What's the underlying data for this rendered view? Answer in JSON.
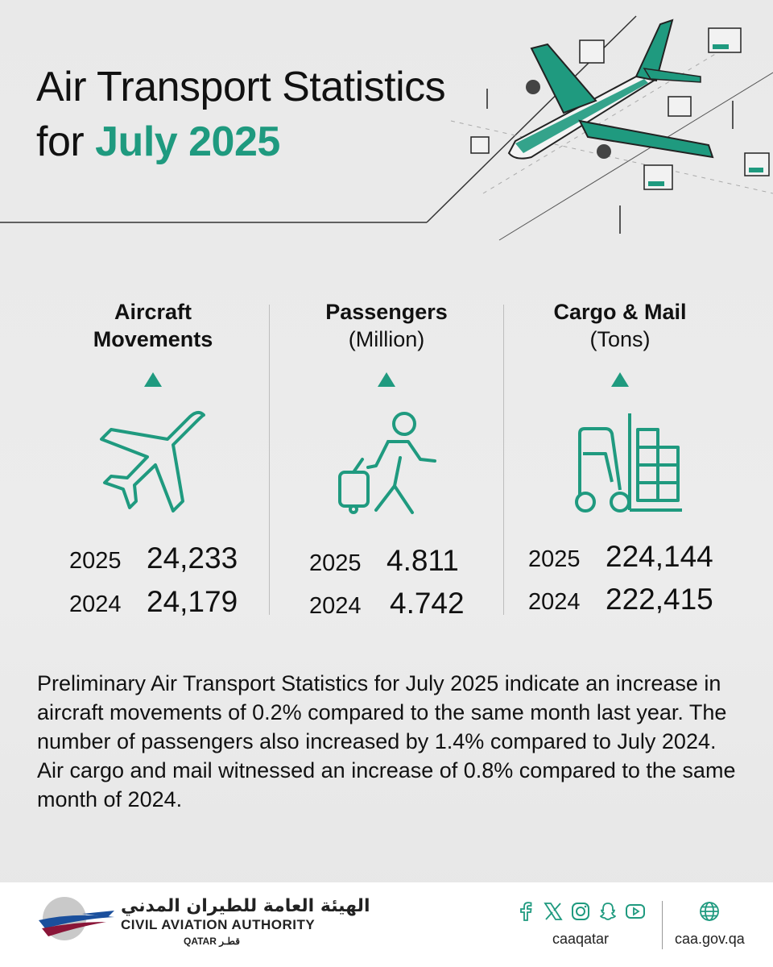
{
  "header": {
    "title_line1": "Air Transport Statistics",
    "title_for": "for ",
    "title_accent": "July 2025"
  },
  "stats": [
    {
      "heading": "Aircraft",
      "heading2": "Movements",
      "sub": "",
      "icon": "airplane-icon",
      "trend": "up",
      "rows": [
        {
          "year": "2025",
          "value": "24,233"
        },
        {
          "year": "2024",
          "value": "24,179"
        }
      ]
    },
    {
      "heading": "Passengers",
      "heading2": "",
      "sub": "(Million)",
      "icon": "traveler-luggage-icon",
      "trend": "up",
      "rows": [
        {
          "year": "2025",
          "value": "4.811"
        },
        {
          "year": "2024",
          "value": "4.742"
        }
      ]
    },
    {
      "heading": "Cargo & Mail",
      "heading2": "",
      "sub": "(Tons)",
      "icon": "forklift-cargo-icon",
      "trend": "up",
      "rows": [
        {
          "year": "2025",
          "value": "224,144"
        },
        {
          "year": "2024",
          "value": "222,415"
        }
      ]
    }
  ],
  "summary": "Preliminary Air Transport Statistics for July 2025 indicate an increase in aircraft movements of 0.2% compared to the same month last year. The number of passengers also increased by 1.4% compared to July 2024. Air cargo and mail witnessed an increase  of 0.8% compared to the same month of 2024.",
  "footer": {
    "logo_arabic": "الهيئة العامة للطيران المدني",
    "logo_english": "CIVIL AVIATION AUTHORITY",
    "logo_country": "QATAR قطـر",
    "social_icons": [
      "facebook-icon",
      "x-icon",
      "instagram-icon",
      "snapchat-icon",
      "youtube-icon"
    ],
    "handle": "caaqatar",
    "website": "caa.gov.qa"
  },
  "colors": {
    "accent": "#1f9a7f",
    "background": "#ebebeb",
    "text": "#111111"
  }
}
